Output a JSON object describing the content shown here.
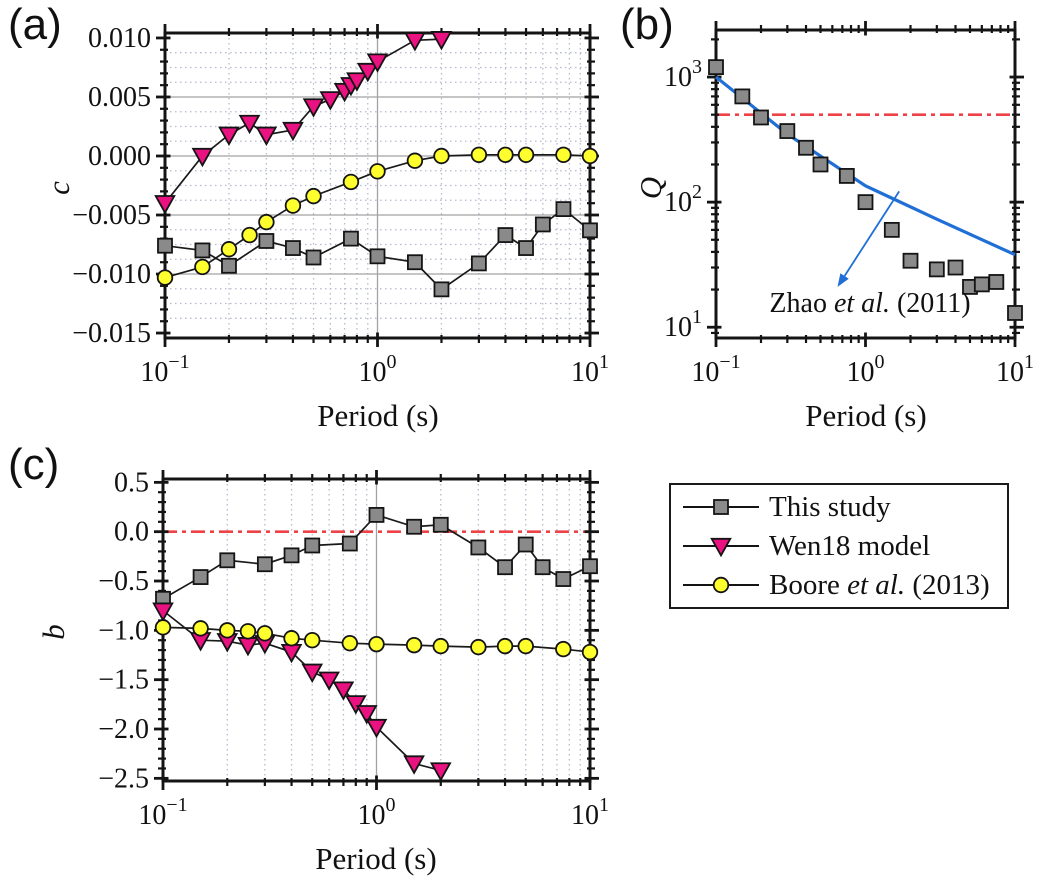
{
  "styles": {
    "this_study": {
      "label_parts": [
        {
          "t": "This study",
          "i": false
        }
      ],
      "marker": "square",
      "fill": "#8a8a8a",
      "stroke": "#141414"
    },
    "wen18": {
      "label_parts": [
        {
          "t": "Wen18 model",
          "i": false
        }
      ],
      "marker": "triangle_down",
      "fill": "#ea1180",
      "stroke": "#141414"
    },
    "boore": {
      "label_parts": [
        {
          "t": "Boore ",
          "i": false
        },
        {
          "t": "et al.",
          "i": true
        },
        {
          "t": " (2013)",
          "i": false
        }
      ],
      "marker": "circle",
      "fill": "#ffff2e",
      "stroke": "#141414"
    }
  },
  "chart_data": [
    {
      "id": "a",
      "panel_label": "(a)",
      "type": "line",
      "xlabel": "Period (s)",
      "ylabel": "c",
      "xscale": "log",
      "xlim": [
        0.1,
        10
      ],
      "yscale": "linear",
      "ylim": [
        -0.01542,
        0.01042
      ],
      "xticks": [
        {
          "v": 0.1,
          "exp": -1
        },
        {
          "v": 1,
          "exp": 0
        },
        {
          "v": 10,
          "exp": 1
        }
      ],
      "yticks": [
        {
          "v": 0.01,
          "label": "0.010"
        },
        {
          "v": 0.005,
          "label": "0.005"
        },
        {
          "v": 0.0,
          "label": "0.000"
        },
        {
          "v": -0.005,
          "label": "−0.005"
        },
        {
          "v": -0.01,
          "label": "−0.010"
        },
        {
          "v": -0.015,
          "label": "−0.015"
        }
      ],
      "y_minor_tick_step": 0.001,
      "grid": {
        "v_minor_dotted": true,
        "v_major_line": true,
        "h_major": true,
        "h_minor_dotted_step": 0.00125
      },
      "series": [
        {
          "key": "this_study",
          "name": "This study",
          "x": [
            0.1,
            0.15,
            0.2,
            0.3,
            0.4,
            0.5,
            0.75,
            1,
            1.5,
            2,
            3,
            4,
            5,
            6,
            7.5,
            10
          ],
          "y": [
            -0.0076,
            -0.008,
            -0.0093,
            -0.0072,
            -0.0078,
            -0.0086,
            -0.007,
            -0.0085,
            -0.009,
            -0.0113,
            -0.0091,
            -0.0067,
            -0.0078,
            -0.0058,
            -0.0045,
            -0.0063
          ]
        },
        {
          "key": "wen18",
          "name": "Wen18 model",
          "x": [
            0.1,
            0.15,
            0.2,
            0.25,
            0.3,
            0.4,
            0.5,
            0.6,
            0.7,
            0.75,
            0.8,
            0.9,
            1,
            1.5,
            2
          ],
          "y": [
            -0.004,
            0.0,
            0.0018,
            0.0028,
            0.0018,
            0.0022,
            0.0042,
            0.0048,
            0.0055,
            0.006,
            0.0064,
            0.0072,
            0.008,
            0.0098,
            0.0099
          ]
        },
        {
          "key": "boore",
          "name": "Boore et al. (2013)",
          "x": [
            0.1,
            0.15,
            0.2,
            0.25,
            0.3,
            0.4,
            0.5,
            0.75,
            1,
            1.5,
            2,
            3,
            4,
            5,
            7.5,
            10
          ],
          "y": [
            -0.0103,
            -0.0094,
            -0.0079,
            -0.0067,
            -0.0056,
            -0.0042,
            -0.0034,
            -0.0022,
            -0.0013,
            -0.0004,
            0.0,
            0.0001,
            0.0001,
            0.0001,
            0.0001,
            0.0
          ]
        }
      ]
    },
    {
      "id": "b",
      "panel_label": "(b)",
      "type": "scatter",
      "xlabel": "Period (s)",
      "ylabel": "Q",
      "xscale": "log",
      "xlim": [
        0.1,
        10
      ],
      "yscale": "log",
      "ylim": [
        8.2,
        2377
      ],
      "xticks": [
        {
          "v": 0.1,
          "exp": -1
        },
        {
          "v": 1,
          "exp": 0
        },
        {
          "v": 10,
          "exp": 1
        }
      ],
      "yticks": [
        {
          "v": 1000,
          "exp": 3
        },
        {
          "v": 100,
          "exp": 2
        },
        {
          "v": 10,
          "exp": 1
        }
      ],
      "grid": {},
      "ref_hline": {
        "v": 500,
        "color": "#ee4247"
      },
      "model_line": {
        "label_pre": "Zhao ",
        "label_italic": "et al.",
        "label_post": " (2011)",
        "color": "#1f6fd6",
        "x": [
          0.1,
          0.3,
          1,
          3,
          10
        ],
        "y": [
          1000,
          350,
          135,
          73,
          38
        ]
      },
      "arrow": {
        "from": [
          1.68,
          122
        ],
        "to": [
          0.65,
          21
        ]
      },
      "series": [
        {
          "key": "this_study",
          "name": "This study",
          "line": false,
          "x": [
            0.1,
            0.15,
            0.2,
            0.3,
            0.4,
            0.5,
            0.75,
            1,
            1.5,
            2,
            3,
            4,
            5,
            6,
            7.5,
            10
          ],
          "y": [
            1200,
            700,
            475,
            370,
            272,
            200,
            162,
            100,
            60,
            34,
            29,
            30,
            21,
            22,
            23,
            13
          ]
        }
      ]
    },
    {
      "id": "c",
      "panel_label": "(c)",
      "type": "line",
      "xlabel": "Period (s)",
      "ylabel": "b",
      "xscale": "log",
      "xlim": [
        0.1,
        10
      ],
      "yscale": "linear",
      "ylim": [
        -2.527,
        0.534
      ],
      "xticks": [
        {
          "v": 0.1,
          "exp": -1
        },
        {
          "v": 1,
          "exp": 0
        },
        {
          "v": 10,
          "exp": 1
        }
      ],
      "yticks": [
        {
          "v": 0.5,
          "label": "0.5"
        },
        {
          "v": 0.0,
          "label": "0.0"
        },
        {
          "v": -0.5,
          "label": "−0.5"
        },
        {
          "v": -1.0,
          "label": "−1.0"
        },
        {
          "v": -1.5,
          "label": "−1.5"
        },
        {
          "v": -2.0,
          "label": "−2.0"
        },
        {
          "v": -2.5,
          "label": "−2.5"
        }
      ],
      "y_minor_tick_step": 0.1,
      "grid": {
        "v_minor_dotted": true,
        "v_major_line": true,
        "h_major": false
      },
      "ref_hline": {
        "v": 0.0,
        "color": "#ee4247"
      },
      "series": [
        {
          "key": "this_study",
          "name": "This study",
          "x": [
            0.1,
            0.15,
            0.2,
            0.3,
            0.4,
            0.5,
            0.75,
            1,
            1.5,
            2,
            3,
            4,
            5,
            6,
            7.5,
            10
          ],
          "y": [
            -0.68,
            -0.46,
            -0.29,
            -0.33,
            -0.24,
            -0.14,
            -0.12,
            0.17,
            0.05,
            0.07,
            -0.16,
            -0.36,
            -0.13,
            -0.36,
            -0.48,
            -0.35
          ]
        },
        {
          "key": "wen18",
          "name": "Wen18 model",
          "x": [
            0.1,
            0.15,
            0.2,
            0.25,
            0.3,
            0.4,
            0.5,
            0.6,
            0.7,
            0.8,
            0.9,
            1,
            1.5,
            2
          ],
          "y": [
            -0.8,
            -1.1,
            -1.11,
            -1.15,
            -1.13,
            -1.22,
            -1.42,
            -1.5,
            -1.6,
            -1.74,
            -1.84,
            -1.98,
            -2.35,
            -2.42
          ]
        },
        {
          "key": "boore",
          "name": "Boore et al. (2013)",
          "x": [
            0.1,
            0.15,
            0.2,
            0.25,
            0.3,
            0.4,
            0.5,
            0.75,
            1,
            1.5,
            2,
            3,
            4,
            5,
            7.5,
            10
          ],
          "y": [
            -0.97,
            -0.98,
            -1.0,
            -1.01,
            -1.03,
            -1.08,
            -1.1,
            -1.13,
            -1.14,
            -1.15,
            -1.16,
            -1.17,
            -1.16,
            -1.16,
            -1.19,
            -1.22
          ]
        }
      ]
    }
  ],
  "legend": {
    "items": [
      {
        "key": "this_study"
      },
      {
        "key": "wen18"
      },
      {
        "key": "boore"
      }
    ]
  }
}
